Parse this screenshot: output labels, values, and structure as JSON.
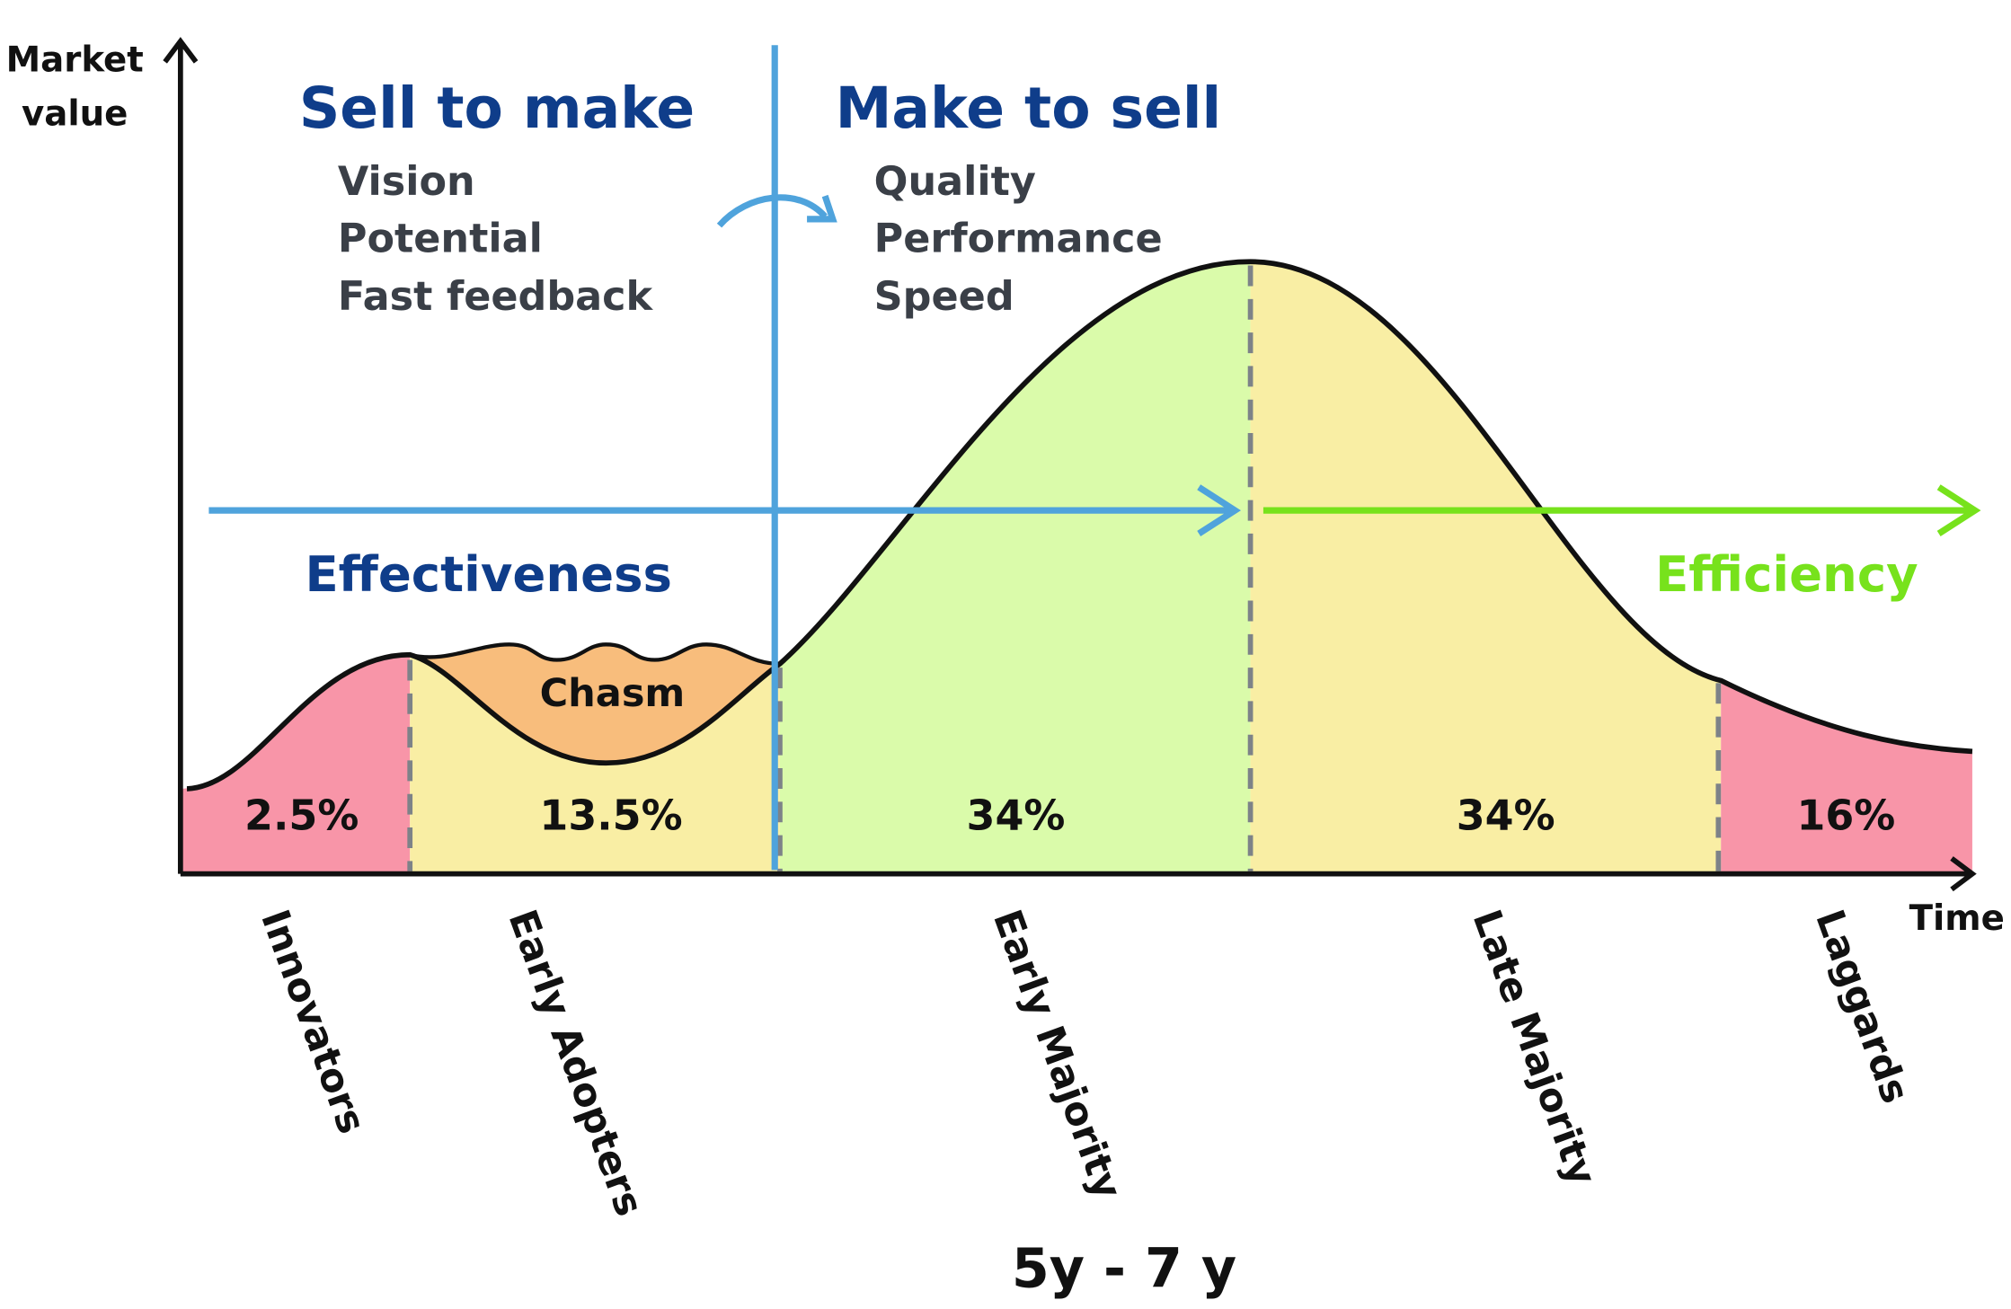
{
  "axes": {
    "y_label": [
      "Market",
      "value"
    ],
    "x_label": "Time"
  },
  "left": {
    "title": "Sell to make",
    "items": [
      "Vision",
      "Potential",
      "Fast feedback"
    ],
    "caption": "Effectiveness"
  },
  "right": {
    "title": "Make to sell",
    "items": [
      "Quality",
      "Performance",
      "Speed"
    ],
    "caption": "Efficiency"
  },
  "chasm": "Chasm",
  "segments": [
    {
      "label": "Innovators",
      "share": "2.5%"
    },
    {
      "label": "Early Adopters",
      "share": "13.5%"
    },
    {
      "label": "Early Majority",
      "share": "34%"
    },
    {
      "label": "Late Majority",
      "share": "34%"
    },
    {
      "label": "Laggards",
      "share": "16%"
    }
  ],
  "footer": "5y - 7 y"
}
